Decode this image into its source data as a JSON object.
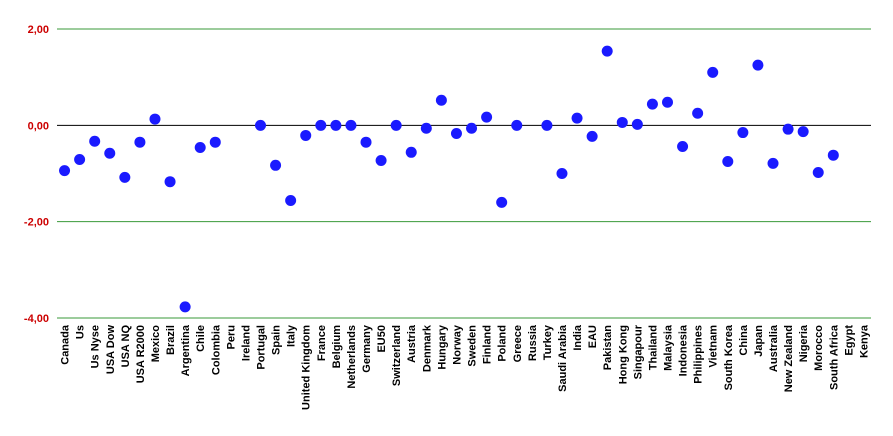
{
  "chart_data": {
    "type": "scatter",
    "categories": [
      "Canada",
      "Us",
      "Us Nyse",
      "USA Dow",
      "USA NQ",
      "USA R2000",
      "Mexico",
      "Brazil",
      "Argentina",
      "Chile",
      "Colombia",
      "Peru",
      "Ireland",
      "Portugal",
      "Spain",
      "Italy",
      "United Kingdom",
      "France",
      "Belgium",
      "Netherlands",
      "Germany",
      "EU50",
      "Switzerland",
      "Austria",
      "Denmark",
      "Hungary",
      "Norway",
      "Sweden",
      "Finland",
      "Poland",
      "Greece",
      "Russia",
      "Turkey",
      "Saudi Arabia",
      "India",
      "EAU",
      "Pakistan",
      "Hong Kong",
      "Singapour",
      "Thailand",
      "Malaysia",
      "Indonesia",
      "Philippines",
      "Vietnam",
      "South Korea",
      "China",
      "Japan",
      "Australia",
      "New Zealand",
      "Nigeria",
      "Morocco",
      "South Africa",
      "Egypt",
      "Kenya"
    ],
    "values": [
      -0.94,
      -0.71,
      -0.33,
      -0.58,
      -1.08,
      -0.35,
      0.13,
      -1.17,
      -3.77,
      -0.46,
      -0.35,
      null,
      null,
      0.0,
      -0.83,
      -1.56,
      -0.21,
      0.0,
      0.0,
      0.0,
      -0.35,
      -0.73,
      0.0,
      -0.56,
      -0.06,
      0.52,
      -0.17,
      -0.06,
      0.17,
      -1.6,
      0.0,
      null,
      0.0,
      -1.0,
      0.15,
      -0.23,
      1.54,
      0.06,
      0.02,
      0.44,
      0.48,
      -0.44,
      0.25,
      1.1,
      -0.75,
      -0.15,
      1.25,
      -0.79,
      -0.08,
      -0.13,
      -0.98,
      -0.62,
      null,
      null
    ],
    "color": "#1a1aff",
    "ylim": [
      -4,
      2
    ],
    "yticks": [
      {
        "value": -4,
        "label": "-4,00"
      },
      {
        "value": -2,
        "label": "-2,00"
      },
      {
        "value": 0,
        "label": "0,00"
      },
      {
        "value": 2,
        "label": "2,00"
      }
    ],
    "grid": true
  }
}
